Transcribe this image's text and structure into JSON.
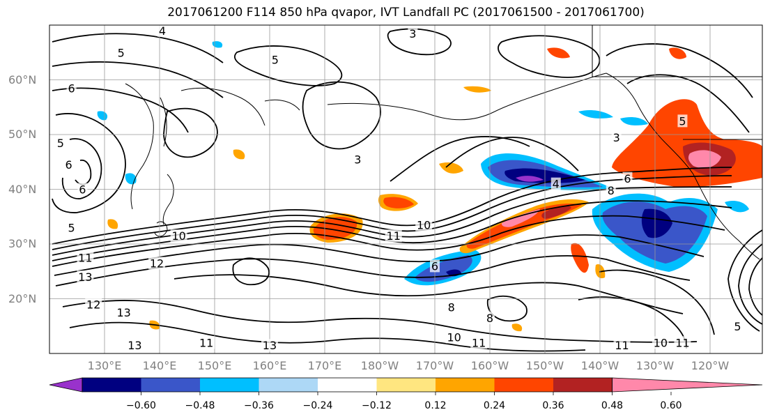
{
  "title": "2017061200 F114 850 hPa qvapor, IVT Landfall PC (2017061500 - 2017061700)",
  "lat_labels": [
    "60°N",
    "50°N",
    "40°N",
    "30°N",
    "20°N"
  ],
  "lat_values": [
    60,
    50,
    40,
    30,
    20
  ],
  "lon_labels": [
    "130°E",
    "140°E",
    "150°E",
    "160°E",
    "170°E",
    "180°W",
    "170°W",
    "160°W",
    "150°W",
    "140°W",
    "130°W",
    "120°W"
  ],
  "lon_values": [
    130,
    140,
    150,
    160,
    170,
    180,
    190,
    200,
    210,
    220,
    230,
    240
  ],
  "contour_labels": [
    {
      "text": "4",
      "lon": 140.5,
      "lat": 69
    },
    {
      "text": "5",
      "lon": 133,
      "lat": 65
    },
    {
      "text": "5",
      "lon": 161,
      "lat": 63.7
    },
    {
      "text": "3",
      "lon": 186,
      "lat": 68.5
    },
    {
      "text": "6",
      "lon": 124,
      "lat": 58.5
    },
    {
      "text": "5",
      "lon": 122,
      "lat": 48.5
    },
    {
      "text": "6",
      "lon": 123.5,
      "lat": 44.5
    },
    {
      "text": "6",
      "lon": 126,
      "lat": 40
    },
    {
      "text": "5",
      "lon": 124,
      "lat": 33
    },
    {
      "text": "10",
      "lon": 143.5,
      "lat": 31.5
    },
    {
      "text": "11",
      "lon": 182.5,
      "lat": 31.5
    },
    {
      "text": "10",
      "lon": 188,
      "lat": 33.5
    },
    {
      "text": "12",
      "lon": 139.5,
      "lat": 26.5
    },
    {
      "text": "11",
      "lon": 126.5,
      "lat": 27.5
    },
    {
      "text": "13",
      "lon": 126.5,
      "lat": 24
    },
    {
      "text": "12",
      "lon": 128,
      "lat": 19
    },
    {
      "text": "13",
      "lon": 133.5,
      "lat": 17.5
    },
    {
      "text": "13",
      "lon": 135.5,
      "lat": 11.5
    },
    {
      "text": "13",
      "lon": 160,
      "lat": 11.5
    },
    {
      "text": "11",
      "lon": 148.5,
      "lat": 12
    },
    {
      "text": "3",
      "lon": 176,
      "lat": 45.5
    },
    {
      "text": "3",
      "lon": 223,
      "lat": 49.5
    },
    {
      "text": "5",
      "lon": 235,
      "lat": 52.5
    },
    {
      "text": "4",
      "lon": 212,
      "lat": 41
    },
    {
      "text": "6",
      "lon": 225,
      "lat": 42
    },
    {
      "text": "8",
      "lon": 222,
      "lat": 39.8
    },
    {
      "text": "6",
      "lon": 190,
      "lat": 26
    },
    {
      "text": "8",
      "lon": 193,
      "lat": 18.5
    },
    {
      "text": "8",
      "lon": 200,
      "lat": 16.5
    },
    {
      "text": "10",
      "lon": 193.5,
      "lat": 13
    },
    {
      "text": "11",
      "lon": 198,
      "lat": 12
    },
    {
      "text": "11",
      "lon": 224,
      "lat": 11.5
    },
    {
      "text": "10",
      "lon": 231,
      "lat": 12
    },
    {
      "text": "11",
      "lon": 235,
      "lat": 12
    },
    {
      "text": "5",
      "lon": 245,
      "lat": 15
    }
  ],
  "colorbar": {
    "colors": [
      "#9932cc",
      "#000080",
      "#3a56c9",
      "#00bfff",
      "#add8f6",
      "#ffffff",
      "#ffe680",
      "#ffa500",
      "#ff4500",
      "#b22222",
      "#ff88aa"
    ],
    "tick_labels": [
      "−0.60",
      "−0.48",
      "−0.36",
      "−0.24",
      "−0.12",
      "0.12",
      "0.24",
      "0.36",
      "0.48",
      "0.60"
    ]
  }
}
